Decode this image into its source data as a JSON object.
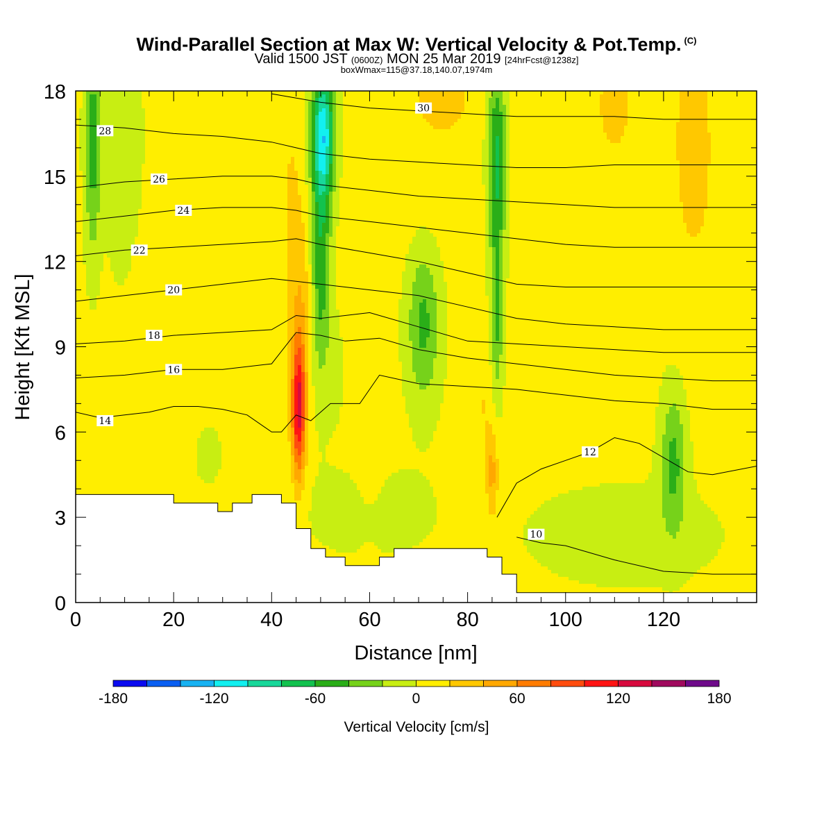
{
  "title": {
    "main": "Wind-Parallel Section at Max W: Vertical Velocity & Pot.Temp.",
    "copyright": "(C)",
    "valid_prefix": "Valid 1500 JST",
    "valid_utc": "(0600Z)",
    "valid_date": "MON 25 Mar 2019",
    "forecast": "[24hrFcst@1238z]",
    "boxwmax": "boxWmax=115@37.18,140.07,1974m"
  },
  "chart_data": {
    "type": "heatmap",
    "title": "Wind-Parallel Section at Max W: Vertical Velocity & Pot.Temp.",
    "xlabel": "Distance [nm]",
    "ylabel": "Height [Kft MSL]",
    "xlim": [
      0,
      139
    ],
    "ylim": [
      0,
      18
    ],
    "x_ticks": [
      "0",
      "20",
      "40",
      "60",
      "80",
      "100",
      "120"
    ],
    "y_ticks": [
      "0",
      "3",
      "6",
      "9",
      "12",
      "15",
      "18"
    ],
    "colorbar": {
      "label": "Vertical Velocity [cm/s]",
      "ticks": [
        "-180",
        "-120",
        "-60",
        "0",
        "60",
        "120",
        "180"
      ],
      "range": [
        -180,
        180
      ],
      "step": 20,
      "colors": [
        "#0b0bf0",
        "#0a5ff2",
        "#18b2f2",
        "#12f0f0",
        "#18d89a",
        "#12c24e",
        "#2aae18",
        "#76d21a",
        "#c8ee12",
        "#ffee00",
        "#ffc800",
        "#ffa800",
        "#ff7c00",
        "#ff4c0e",
        "#ff1414",
        "#d80a3e",
        "#a00a5e",
        "#6e0a8a"
      ]
    },
    "field_description": "Vertical velocity shading (cm/s): background weak rising air (0-20) and weak sinking air (-20-0); strong updraft core ~100 to 120 at x~45 nm, 5-9 kft; downdraft bands near x~48-55 (upper levels, to -120), x~83-88 (to -60), x~3 and x~70 (-40 to -60), x~122 (-40 to -60) at 3-7 kft.",
    "terrain": {
      "x": [
        0,
        20,
        20,
        29,
        29,
        32,
        32,
        36,
        36,
        42,
        42,
        45,
        45,
        48,
        48,
        51,
        51,
        55,
        55,
        62,
        62,
        65,
        65,
        84,
        84,
        87,
        87,
        90,
        90,
        139
      ],
      "y": [
        3.8,
        3.8,
        3.5,
        3.5,
        3.2,
        3.2,
        3.5,
        3.5,
        3.8,
        3.8,
        3.5,
        3.5,
        2.6,
        2.6,
        1.9,
        1.9,
        1.6,
        1.6,
        1.3,
        1.3,
        1.6,
        1.6,
        1.9,
        1.9,
        1.6,
        1.6,
        1.0,
        1.0,
        0.35,
        0.35
      ]
    },
    "contours": [
      {
        "label": "10",
        "label_at": [
          94,
          2.4
        ],
        "x": [
          90,
          95,
          100,
          110,
          120,
          130,
          139
        ],
        "y": [
          2.3,
          2.1,
          2.0,
          1.5,
          1.1,
          1.0,
          1.0
        ]
      },
      {
        "label": "12",
        "label_at": [
          105,
          5.3
        ],
        "x": [
          86,
          90,
          95,
          100,
          105,
          110,
          115,
          120,
          125,
          130,
          139
        ],
        "y": [
          3.0,
          4.2,
          4.7,
          5.0,
          5.3,
          5.8,
          5.6,
          5.1,
          4.6,
          4.5,
          4.8
        ]
      },
      {
        "label": "14",
        "label_at": [
          6,
          6.4
        ],
        "x": [
          0,
          5,
          10,
          15,
          20,
          25,
          30,
          35,
          40,
          42,
          45,
          48,
          52,
          58,
          62,
          70,
          80,
          90,
          100,
          110,
          120,
          130,
          139
        ],
        "y": [
          6.7,
          6.5,
          6.6,
          6.7,
          6.9,
          6.9,
          6.8,
          6.6,
          6.0,
          6.0,
          6.6,
          6.4,
          7.0,
          7.0,
          8.0,
          7.7,
          7.6,
          7.5,
          7.3,
          7.1,
          7.0,
          6.8,
          6.8
        ]
      },
      {
        "label": "16",
        "label_at": [
          20,
          8.2
        ],
        "x": [
          0,
          10,
          20,
          30,
          40,
          45,
          50,
          55,
          62,
          70,
          80,
          90,
          100,
          110,
          120,
          130,
          139
        ],
        "y": [
          7.9,
          8.0,
          8.2,
          8.2,
          8.4,
          9.5,
          9.4,
          9.2,
          9.3,
          8.9,
          8.6,
          8.4,
          8.2,
          8.0,
          7.9,
          7.8,
          7.8
        ]
      },
      {
        "label": "18",
        "label_at": [
          16,
          9.4
        ],
        "x": [
          0,
          10,
          20,
          30,
          40,
          45,
          50,
          60,
          70,
          80,
          90,
          100,
          110,
          120,
          130,
          139
        ],
        "y": [
          9.1,
          9.2,
          9.4,
          9.5,
          9.6,
          10.1,
          10.0,
          10.2,
          9.7,
          9.2,
          9.1,
          9.0,
          8.9,
          8.8,
          8.8,
          8.8
        ]
      },
      {
        "label": "20",
        "label_at": [
          20,
          11.0
        ],
        "x": [
          0,
          10,
          20,
          30,
          40,
          45,
          50,
          60,
          70,
          80,
          90,
          100,
          110,
          120,
          130,
          139
        ],
        "y": [
          10.6,
          10.8,
          11.0,
          11.2,
          11.4,
          11.3,
          11.2,
          11.0,
          10.8,
          10.4,
          10.0,
          9.8,
          9.7,
          9.6,
          9.6,
          9.6
        ]
      },
      {
        "label": "22",
        "label_at": [
          13,
          12.4
        ],
        "x": [
          0,
          10,
          20,
          30,
          40,
          45,
          50,
          60,
          70,
          80,
          90,
          100,
          110,
          120,
          130,
          139
        ],
        "y": [
          12.2,
          12.4,
          12.5,
          12.6,
          12.7,
          12.8,
          12.6,
          12.3,
          12.0,
          11.6,
          11.2,
          11.1,
          11.1,
          11.1,
          11.1,
          11.1
        ]
      },
      {
        "label": "24",
        "label_at": [
          22,
          13.8
        ],
        "x": [
          0,
          10,
          20,
          30,
          40,
          45,
          50,
          60,
          70,
          80,
          90,
          100,
          110,
          120,
          130,
          139
        ],
        "y": [
          13.4,
          13.6,
          13.8,
          13.9,
          13.9,
          13.8,
          13.6,
          13.4,
          13.2,
          13.0,
          12.8,
          12.6,
          12.5,
          12.5,
          12.5,
          12.5
        ]
      },
      {
        "label": "26",
        "label_at": [
          17,
          14.9
        ],
        "x": [
          0,
          10,
          20,
          30,
          40,
          45,
          50,
          60,
          70,
          80,
          90,
          100,
          110,
          120,
          130,
          139
        ],
        "y": [
          14.6,
          14.8,
          14.9,
          15.0,
          15.0,
          14.9,
          14.7,
          14.5,
          14.3,
          14.2,
          14.1,
          14.0,
          13.9,
          13.9,
          13.9,
          13.9
        ]
      },
      {
        "label": "28",
        "label_at": [
          6,
          16.6
        ],
        "x": [
          0,
          10,
          20,
          30,
          40,
          45,
          50,
          60,
          70,
          80,
          90,
          100,
          110,
          120,
          130,
          139
        ],
        "y": [
          16.8,
          16.7,
          16.5,
          16.4,
          16.2,
          16.0,
          15.8,
          15.6,
          15.5,
          15.4,
          15.3,
          15.3,
          15.4,
          15.4,
          15.4,
          15.4
        ]
      },
      {
        "label": "30",
        "label_at": [
          71,
          17.4
        ],
        "x": [
          40,
          50,
          60,
          70,
          80,
          90,
          100,
          110,
          120,
          130,
          139
        ],
        "y": [
          17.9,
          17.6,
          17.4,
          17.3,
          17.2,
          17.1,
          17.1,
          17.1,
          17.0,
          17.0,
          17.0
        ]
      }
    ]
  }
}
